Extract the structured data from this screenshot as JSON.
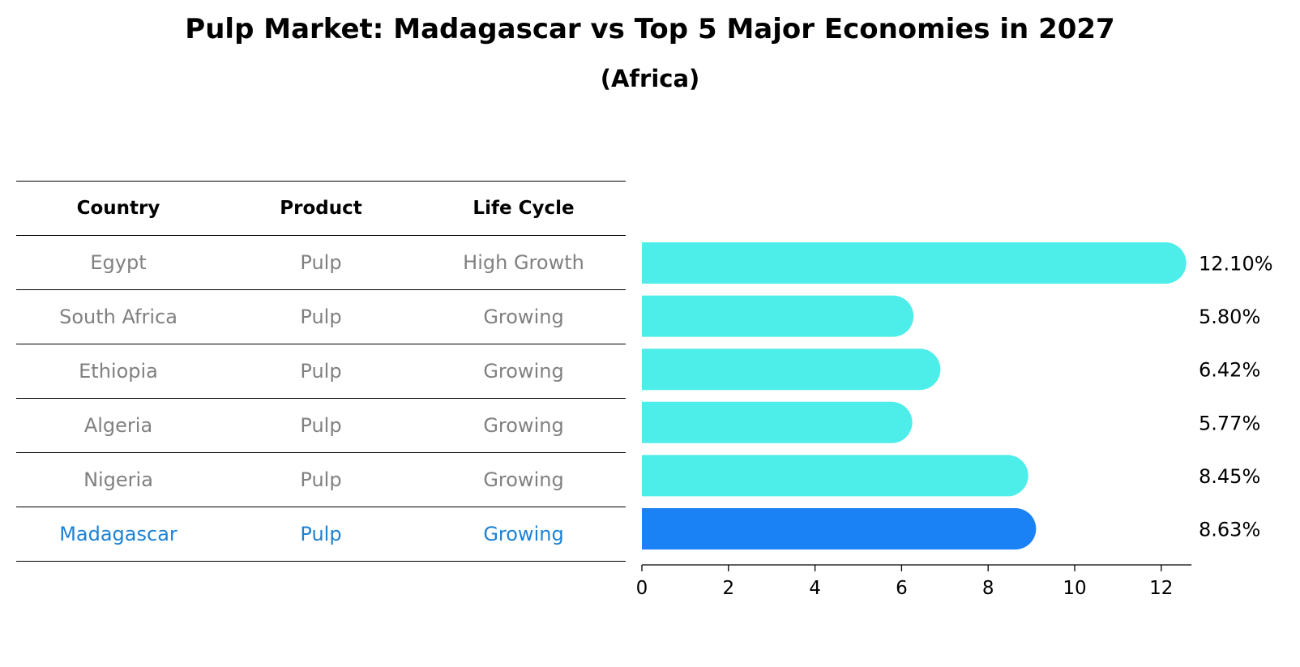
{
  "title": "Pulp Market: Madagascar vs Top 5 Major Economies in 2027",
  "subtitle": "(Africa)",
  "table": {
    "headers": [
      "Country",
      "Product",
      "Life Cycle"
    ],
    "rows": [
      [
        "Egypt",
        "Pulp",
        "High Growth"
      ],
      [
        "South Africa",
        "Pulp",
        "Growing"
      ],
      [
        "Ethiopia",
        "Pulp",
        "Growing"
      ],
      [
        "Algeria",
        "Pulp",
        "Growing"
      ],
      [
        "Nigeria",
        "Pulp",
        "Growing"
      ],
      [
        "Madagascar",
        "Pulp",
        "Growing"
      ]
    ]
  },
  "colors": {
    "bar": "#4deeea",
    "highlight_bar": "#1a82f4",
    "highlight_text": "#1c82d4",
    "row_text": "#808080"
  },
  "chart_data": {
    "type": "bar",
    "orientation": "horizontal",
    "title": "Pulp Market: Madagascar vs Top 5 Major Economies in 2027",
    "subtitle": "(Africa)",
    "categories": [
      "Egypt",
      "South Africa",
      "Ethiopia",
      "Algeria",
      "Nigeria",
      "Madagascar"
    ],
    "values": [
      12.1,
      5.8,
      6.42,
      5.77,
      8.45,
      8.63
    ],
    "labels": [
      "12.10%",
      "5.80%",
      "6.42%",
      "5.77%",
      "8.45%",
      "8.63%"
    ],
    "highlight": "Madagascar",
    "xlim": [
      0,
      12.7
    ],
    "xticks": [
      0,
      2,
      4,
      6,
      8,
      10,
      12
    ],
    "xlabel": "",
    "ylabel": "",
    "grid": false
  }
}
